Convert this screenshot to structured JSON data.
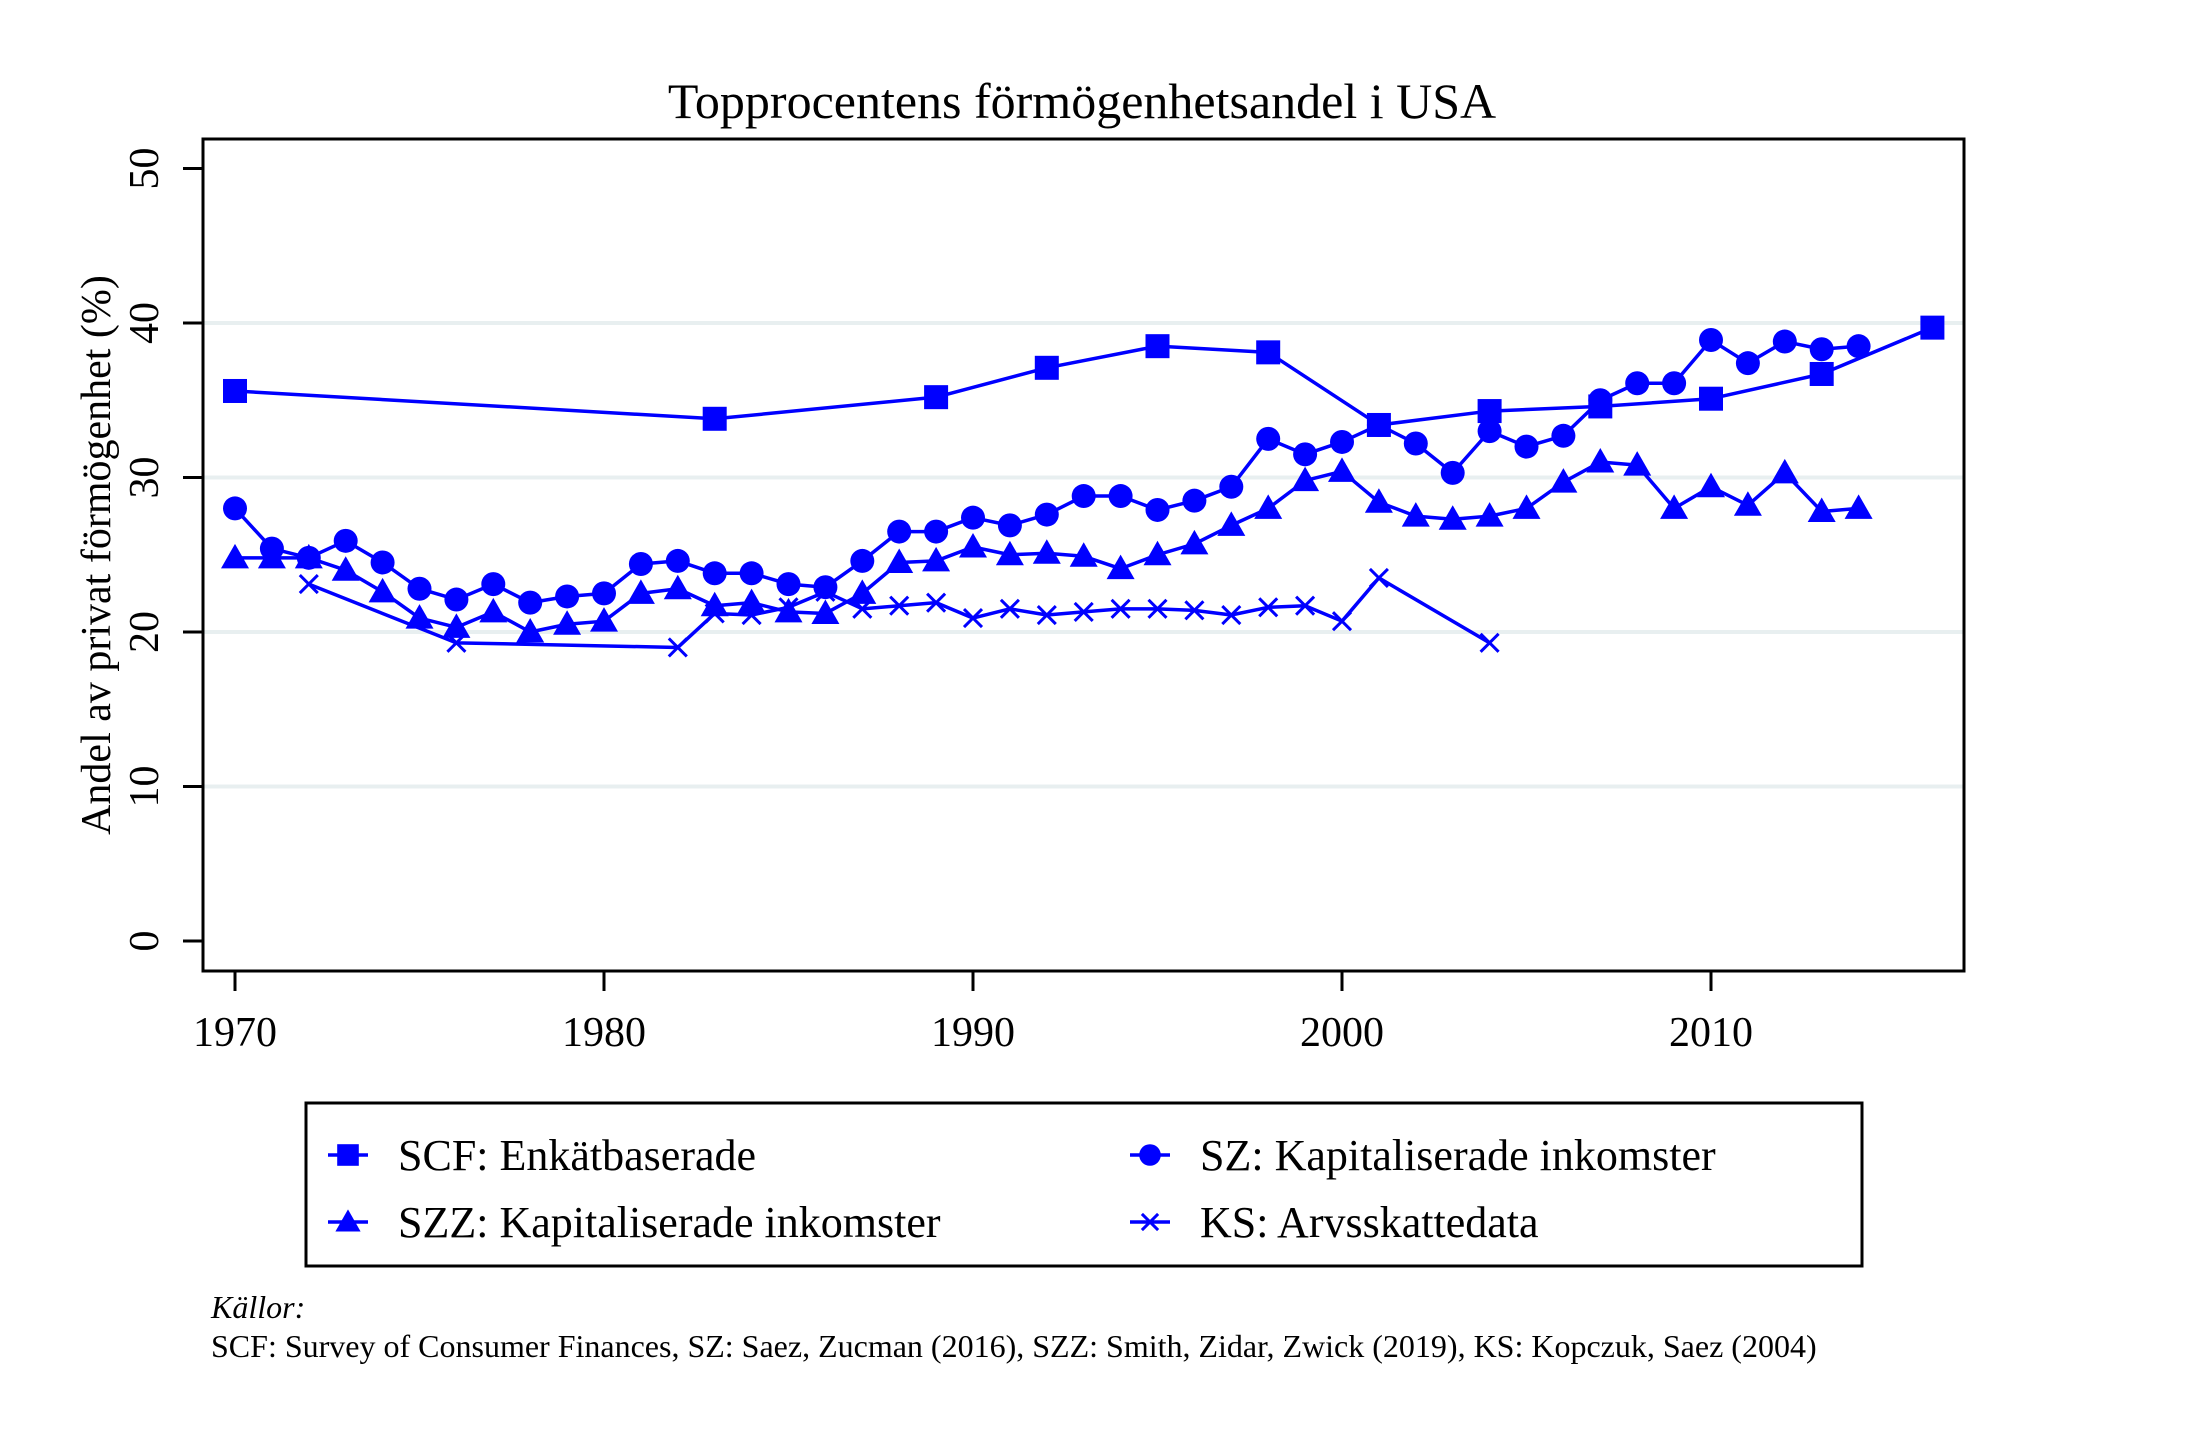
{
  "chart_data": {
    "type": "line",
    "title": "Topprocentens förmögenhetsandel i USA",
    "xlabel": "",
    "ylabel": "Andel av privat förmögenhet (%)",
    "xlim": [
      1969.2,
      2018.3
    ],
    "ylim": [
      -2,
      52
    ],
    "xticks": [
      1970,
      1980,
      1990,
      2000,
      2010
    ],
    "yticks": [
      0,
      10,
      20,
      30,
      40,
      50
    ],
    "grid": "horizontal",
    "legend_position": "bottom",
    "color": "#0000ff",
    "series": [
      {
        "name": "SCF: Enkätbaserade",
        "marker": "square",
        "x": [
          1970,
          1983,
          1989,
          1992,
          1995,
          1998,
          2001,
          2004,
          2007,
          2010,
          2013,
          2016
        ],
        "values": [
          35.6,
          33.8,
          35.2,
          37.1,
          38.5,
          38.1,
          33.4,
          34.3,
          34.6,
          35.1,
          36.7,
          39.7
        ]
      },
      {
        "name": "SZ: Kapitaliserade inkomster",
        "marker": "circle",
        "x": [
          1970,
          1971,
          1972,
          1973,
          1974,
          1975,
          1976,
          1977,
          1978,
          1979,
          1980,
          1981,
          1982,
          1983,
          1984,
          1985,
          1986,
          1987,
          1988,
          1989,
          1990,
          1991,
          1992,
          1993,
          1994,
          1995,
          1996,
          1997,
          1998,
          1999,
          2000,
          2001,
          2002,
          2003,
          2004,
          2005,
          2006,
          2007,
          2008,
          2009,
          2010,
          2011,
          2012,
          2013,
          2014
        ],
        "values": [
          28.0,
          25.4,
          24.8,
          25.9,
          24.5,
          22.8,
          22.1,
          23.1,
          21.9,
          22.3,
          22.5,
          24.4,
          24.6,
          23.8,
          23.8,
          23.1,
          22.9,
          24.6,
          26.5,
          26.5,
          27.4,
          26.9,
          27.6,
          28.8,
          28.8,
          27.9,
          28.5,
          29.4,
          32.5,
          31.5,
          32.3,
          33.4,
          32.2,
          30.3,
          33.0,
          32.0,
          32.7,
          35.0,
          36.1,
          36.1,
          38.9,
          37.4,
          38.8,
          38.3,
          38.5
        ]
      },
      {
        "name": "SZZ: Kapitaliserade inkomster",
        "marker": "triangle",
        "x": [
          1970,
          1971,
          1972,
          1973,
          1974,
          1975,
          1976,
          1977,
          1978,
          1979,
          1980,
          1981,
          1982,
          1983,
          1984,
          1985,
          1986,
          1987,
          1988,
          1989,
          1990,
          1991,
          1992,
          1993,
          1994,
          1995,
          1996,
          1997,
          1998,
          1999,
          2000,
          2001,
          2002,
          2003,
          2004,
          2005,
          2006,
          2007,
          2008,
          2009,
          2010,
          2011,
          2012,
          2013,
          2014
        ],
        "values": [
          24.8,
          24.8,
          24.8,
          24.0,
          22.6,
          20.9,
          20.3,
          21.3,
          20.0,
          20.5,
          20.7,
          22.5,
          22.8,
          21.7,
          21.9,
          21.3,
          21.2,
          22.5,
          24.5,
          24.6,
          25.5,
          25.0,
          25.1,
          24.9,
          24.1,
          25.0,
          25.7,
          26.9,
          28.0,
          29.8,
          30.4,
          28.4,
          27.5,
          27.3,
          27.5,
          28.0,
          29.7,
          31.0,
          30.8,
          28.0,
          29.4,
          28.2,
          30.3,
          27.8,
          28.0
        ]
      },
      {
        "name": "KS: Arvsskattedata",
        "marker": "x",
        "x": [
          1972,
          1976,
          1982,
          1983,
          1984,
          1985,
          1986,
          1987,
          1988,
          1989,
          1990,
          1991,
          1992,
          1993,
          1994,
          1995,
          1996,
          1997,
          1998,
          1999,
          2000,
          2001,
          2004
        ],
        "values": [
          23.1,
          19.3,
          19.0,
          21.2,
          21.1,
          21.6,
          22.6,
          21.5,
          21.7,
          21.9,
          20.9,
          21.5,
          21.1,
          21.3,
          21.5,
          21.5,
          21.4,
          21.1,
          21.6,
          21.7,
          20.7,
          23.5,
          19.3
        ]
      }
    ],
    "annotations": {
      "sources_heading": "Källor:",
      "sources_text": "SCF: Survey of Consumer Finances, SZ: Saez, Zucman (2016), SZZ: Smith, Zidar, Zwick (2019), KS: Kopczuk, Saez (2004)"
    }
  }
}
